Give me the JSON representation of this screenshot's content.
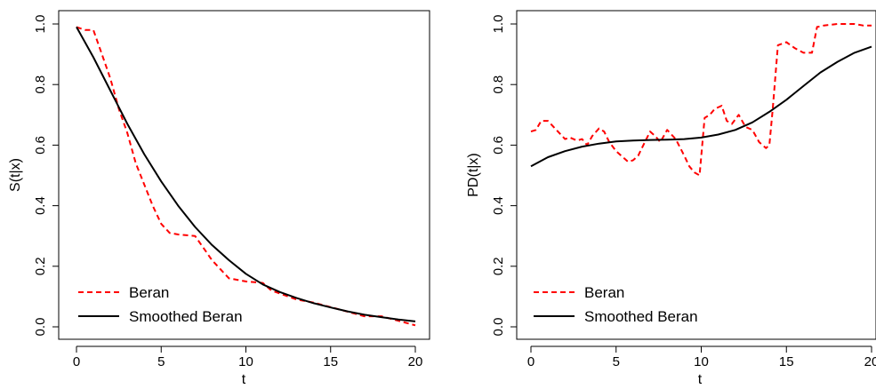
{
  "colors": {
    "beran": "#ff0000",
    "smoothed": "#000000",
    "axis": "#000000"
  },
  "chart_data": [
    {
      "type": "line",
      "xlabel": "t",
      "ylabel": "S(t|x)",
      "xlim": [
        0,
        20
      ],
      "ylim": [
        0,
        1
      ],
      "xticks": [
        0,
        5,
        10,
        15,
        20
      ],
      "xtick_labels": [
        "0",
        "5",
        "10",
        "15",
        "20"
      ],
      "yticks": [
        0.0,
        0.2,
        0.4,
        0.6,
        0.8,
        1.0
      ],
      "ytick_labels": [
        "0.0",
        "0.2",
        "0.4",
        "0.6",
        "0.8",
        "1.0"
      ],
      "legend_position": "bottom-left",
      "series": [
        {
          "name": "Beran",
          "style": "dashed",
          "color": "#ff0000",
          "x": [
            0,
            0.5,
            1.0,
            1.5,
            2.0,
            2.5,
            3.0,
            3.5,
            4.0,
            4.5,
            5.0,
            5.5,
            6.0,
            7.0,
            7.5,
            8.0,
            8.5,
            9.0,
            9.5,
            10.0,
            11.0,
            11.5,
            12.0,
            13.0,
            14.0,
            15.0,
            16.0,
            17.0,
            18.0,
            19.0,
            20.0
          ],
          "y": [
            0.99,
            0.98,
            0.98,
            0.9,
            0.82,
            0.72,
            0.64,
            0.54,
            0.47,
            0.4,
            0.34,
            0.31,
            0.305,
            0.3,
            0.26,
            0.22,
            0.19,
            0.16,
            0.155,
            0.15,
            0.145,
            0.12,
            0.11,
            0.09,
            0.08,
            0.065,
            0.05,
            0.035,
            0.035,
            0.02,
            0.005
          ]
        },
        {
          "name": "Smoothed Beran",
          "style": "solid",
          "color": "#000000",
          "x": [
            0,
            1,
            2,
            3,
            4,
            5,
            6,
            7,
            8,
            9,
            10,
            11,
            12,
            13,
            14,
            15,
            16,
            17,
            18,
            19,
            20
          ],
          "y": [
            0.99,
            0.89,
            0.78,
            0.67,
            0.57,
            0.48,
            0.4,
            0.33,
            0.27,
            0.22,
            0.175,
            0.14,
            0.115,
            0.095,
            0.078,
            0.064,
            0.051,
            0.04,
            0.032,
            0.024,
            0.018
          ]
        }
      ]
    },
    {
      "type": "line",
      "xlabel": "t",
      "ylabel": "PD(t|x)",
      "xlim": [
        0,
        20
      ],
      "ylim": [
        0,
        1
      ],
      "xticks": [
        0,
        5,
        10,
        15,
        20
      ],
      "xtick_labels": [
        "0",
        "5",
        "10",
        "15",
        "20"
      ],
      "yticks": [
        0.0,
        0.2,
        0.4,
        0.6,
        0.8,
        1.0
      ],
      "ytick_labels": [
        "0.0",
        "0.2",
        "0.4",
        "0.6",
        "0.8",
        "1.0"
      ],
      "legend_position": "bottom-left",
      "series": [
        {
          "name": "Beran",
          "style": "dashed",
          "color": "#ff0000",
          "x": [
            0,
            0.3,
            0.6,
            1.0,
            1.5,
            2.0,
            2.3,
            2.7,
            3.0,
            3.3,
            3.6,
            4.0,
            4.3,
            4.6,
            5.0,
            5.3,
            5.7,
            6.0,
            6.3,
            6.6,
            7.0,
            7.3,
            7.6,
            8.0,
            8.5,
            9.0,
            9.3,
            9.6,
            9.9,
            10.2,
            10.5,
            10.8,
            11.2,
            11.5,
            11.8,
            12.2,
            12.6,
            13.0,
            13.4,
            13.8,
            14.0,
            14.2,
            14.5,
            15.0,
            15.5,
            16.0,
            16.5,
            16.8,
            17.2,
            18.0,
            19.0,
            19.5,
            20.0
          ],
          "y": [
            0.645,
            0.65,
            0.68,
            0.68,
            0.65,
            0.62,
            0.625,
            0.615,
            0.62,
            0.6,
            0.63,
            0.655,
            0.645,
            0.61,
            0.58,
            0.565,
            0.545,
            0.55,
            0.565,
            0.6,
            0.645,
            0.63,
            0.61,
            0.65,
            0.62,
            0.565,
            0.53,
            0.51,
            0.5,
            0.69,
            0.7,
            0.72,
            0.73,
            0.68,
            0.67,
            0.7,
            0.66,
            0.65,
            0.61,
            0.59,
            0.6,
            0.72,
            0.93,
            0.94,
            0.92,
            0.905,
            0.905,
            0.99,
            0.995,
            1.0,
            1.0,
            0.995,
            0.995
          ]
        },
        {
          "name": "Smoothed Beran",
          "style": "solid",
          "color": "#000000",
          "x": [
            0,
            1,
            2,
            3,
            4,
            5,
            6,
            7,
            8,
            9,
            10,
            11,
            12,
            13,
            14,
            15,
            16,
            17,
            18,
            19,
            20
          ],
          "y": [
            0.53,
            0.56,
            0.58,
            0.595,
            0.605,
            0.612,
            0.615,
            0.617,
            0.618,
            0.62,
            0.625,
            0.635,
            0.65,
            0.675,
            0.71,
            0.75,
            0.795,
            0.84,
            0.875,
            0.905,
            0.925
          ]
        }
      ]
    }
  ]
}
